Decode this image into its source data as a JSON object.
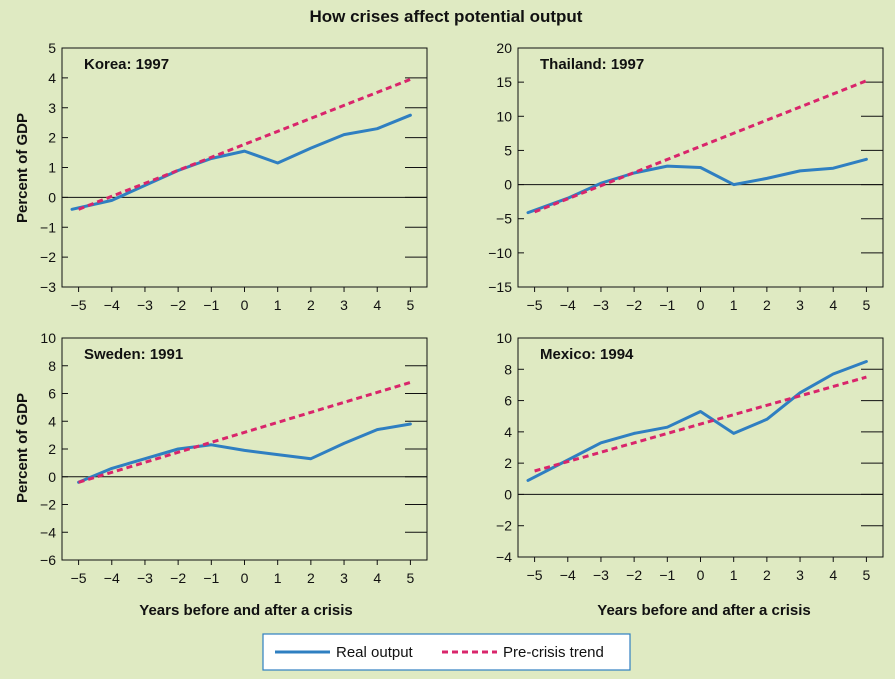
{
  "figure": {
    "title": "How crises affect potential output",
    "ylabel": "Percent of GDP",
    "xlabel": "Years before and after a crisis"
  },
  "legend": {
    "real_output": "Real output",
    "pre_crisis_trend": "Pre-crisis trend"
  },
  "colors": {
    "background": "#dfeac2",
    "real_output": "#2f7fc1",
    "pre_crisis_trend": "#d9256b",
    "axis": "#111111"
  },
  "chart_data": [
    {
      "type": "line",
      "title": "Korea: 1997",
      "x_ticks": [
        -5,
        -4,
        -3,
        -2,
        -1,
        0,
        1,
        2,
        3,
        4,
        5
      ],
      "xlim": [
        -5.5,
        5.5
      ],
      "ylim": [
        -3,
        5
      ],
      "y_ticks": [
        -3,
        -2,
        -1,
        0,
        1,
        2,
        3,
        4,
        5
      ],
      "series": [
        {
          "name": "Real output",
          "style": "solid",
          "x": [
            -5.2,
            -4,
            -3,
            -2,
            -1,
            0,
            1,
            2,
            3,
            4,
            5
          ],
          "y": [
            -0.4,
            -0.1,
            0.4,
            0.9,
            1.3,
            1.55,
            1.15,
            1.65,
            2.1,
            2.3,
            2.75
          ]
        },
        {
          "name": "Pre-crisis trend",
          "style": "dashed",
          "x": [
            -5,
            5
          ],
          "y": [
            -0.4,
            3.95
          ]
        }
      ]
    },
    {
      "type": "line",
      "title": "Thailand: 1997",
      "x_ticks": [
        -5,
        -4,
        -3,
        -2,
        -1,
        0,
        1,
        2,
        3,
        4,
        5
      ],
      "xlim": [
        -5.5,
        5.5
      ],
      "ylim": [
        -15,
        20
      ],
      "y_ticks": [
        -15,
        -10,
        -5,
        0,
        5,
        10,
        15,
        20
      ],
      "series": [
        {
          "name": "Real output",
          "style": "solid",
          "x": [
            -5.2,
            -4,
            -3,
            -2,
            -1,
            0,
            1,
            2,
            3,
            4,
            5
          ],
          "y": [
            -4.1,
            -2,
            0.2,
            1.7,
            2.7,
            2.5,
            0,
            0.9,
            2.0,
            2.4,
            3.7
          ]
        },
        {
          "name": "Pre-crisis trend",
          "style": "dashed",
          "x": [
            -5,
            5
          ],
          "y": [
            -4.0,
            15.2
          ]
        }
      ]
    },
    {
      "type": "line",
      "title": "Sweden: 1991",
      "x_ticks": [
        -5,
        -4,
        -3,
        -2,
        -1,
        0,
        1,
        2,
        3,
        4,
        5
      ],
      "xlim": [
        -5.5,
        5.5
      ],
      "ylim": [
        -6,
        10
      ],
      "y_ticks": [
        -6,
        -4,
        -2,
        0,
        2,
        4,
        6,
        8,
        10
      ],
      "series": [
        {
          "name": "Real output",
          "style": "solid",
          "x": [
            -5,
            -4,
            -3,
            -2,
            -1,
            0,
            1,
            2,
            3,
            4,
            5
          ],
          "y": [
            -0.4,
            0.6,
            1.3,
            2.0,
            2.3,
            1.9,
            1.6,
            1.3,
            2.4,
            3.4,
            3.8
          ]
        },
        {
          "name": "Pre-crisis trend",
          "style": "dashed",
          "x": [
            -5,
            5
          ],
          "y": [
            -0.4,
            6.8
          ]
        }
      ]
    },
    {
      "type": "line",
      "title": "Mexico: 1994",
      "x_ticks": [
        -5,
        -4,
        -3,
        -2,
        -1,
        0,
        1,
        2,
        3,
        4,
        5
      ],
      "xlim": [
        -5.5,
        5.5
      ],
      "ylim": [
        -4,
        10
      ],
      "y_ticks": [
        -4,
        -2,
        0,
        2,
        4,
        6,
        8,
        10
      ],
      "series": [
        {
          "name": "Real output",
          "style": "solid",
          "x": [
            -5.2,
            -4,
            -3,
            -2,
            -1,
            0,
            1,
            2,
            3,
            4,
            5
          ],
          "y": [
            0.9,
            2.2,
            3.3,
            3.9,
            4.3,
            5.3,
            3.9,
            4.8,
            6.5,
            7.7,
            8.5
          ]
        },
        {
          "name": "Pre-crisis trend",
          "style": "dashed",
          "x": [
            -5,
            5
          ],
          "y": [
            1.5,
            7.5
          ]
        }
      ]
    }
  ]
}
